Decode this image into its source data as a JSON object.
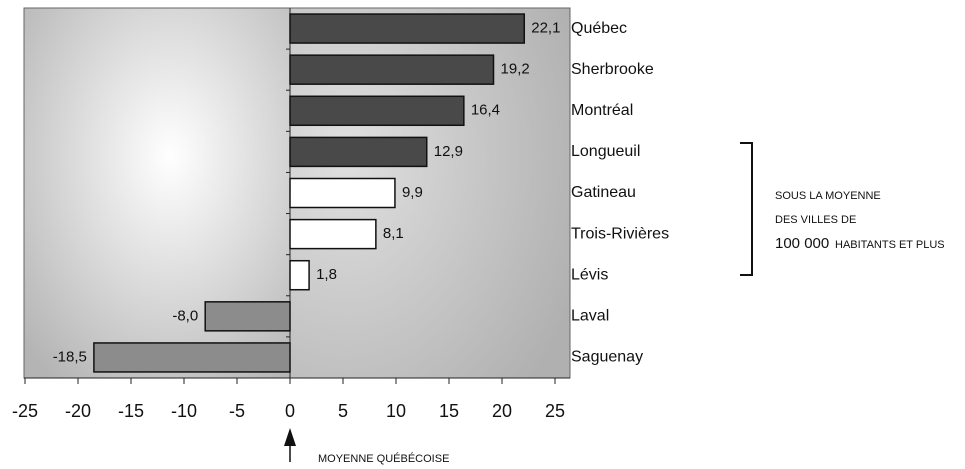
{
  "chart_data": {
    "type": "barh",
    "categories": [
      "Québec",
      "Sherbrooke",
      "Montréal",
      "Longueuil",
      "Gatineau",
      "Trois-Rivières",
      "Lévis",
      "Laval",
      "Saguenay"
    ],
    "values": [
      22.1,
      19.2,
      16.4,
      12.9,
      9.9,
      8.1,
      1.8,
      -8.0,
      -18.5
    ],
    "value_labels": [
      "22,1",
      "19,2",
      "16,4",
      "12,9",
      "9,9",
      "8,1",
      "1,8",
      "-8,0",
      "-18,5"
    ],
    "colors": [
      "#494949",
      "#494949",
      "#494949",
      "#494949",
      "#ffffff",
      "#ffffff",
      "#ffffff",
      "#8c8c8c",
      "#8c8c8c"
    ],
    "xlim": [
      -25,
      25
    ],
    "xticks": [
      -25,
      -20,
      -15,
      -10,
      -5,
      0,
      5,
      10,
      15,
      20,
      25
    ],
    "annotations": {
      "bracket": [
        "SOUS LA MOYENNE",
        "DES VILLES DE"
      ],
      "bracket_number": "100 000",
      "bracket_tail": "HABITANTS ET PLUS",
      "arrow": "MOYENNE QUÉBÉCOISE"
    }
  }
}
